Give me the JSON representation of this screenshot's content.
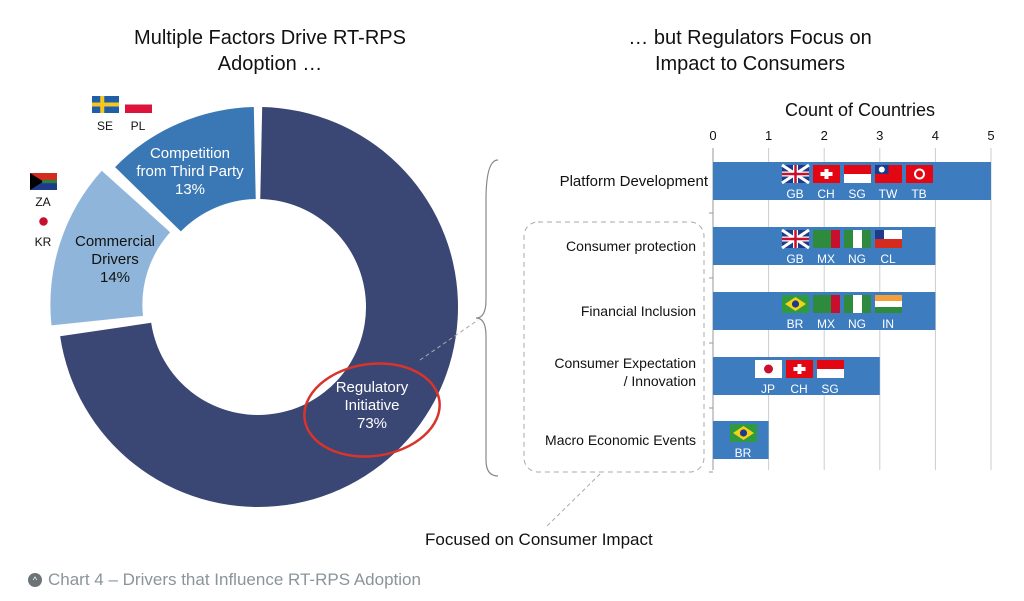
{
  "left_title": [
    "Multiple Factors Drive RT-RPS",
    "Adoption …"
  ],
  "right_title": [
    "… but Regulators Focus on",
    "Impact to Consumers"
  ],
  "focus_label": "Focused on Consumer Impact",
  "caption": "Chart 4 – Drivers that Influence RT-RPS Adoption",
  "caption_icon": "chevron-up-circle-icon",
  "chart_data": [
    {
      "type": "pie",
      "variant": "donut",
      "slices": [
        {
          "label": [
            "Regulatory",
            "Initiative"
          ],
          "value": 73,
          "value_label": "73%",
          "color": "#3a4673",
          "highlighted": true
        },
        {
          "label": [
            "Commercial",
            "Drivers"
          ],
          "value": 14,
          "value_label": "14%",
          "color": "#8fb6da",
          "countries": [
            "ZA",
            "KR"
          ]
        },
        {
          "label": [
            "Competition",
            "from Third Party"
          ],
          "value": 13,
          "value_label": "13%",
          "color": "#3a78b5",
          "countries": [
            "SE",
            "PL"
          ]
        }
      ]
    },
    {
      "type": "bar",
      "orientation": "horizontal",
      "title": "Count of Countries",
      "xlim": [
        0,
        5
      ],
      "ticks": [
        "0",
        "1",
        "2",
        "3",
        "4",
        "5"
      ],
      "grid": true,
      "bar_color": "#3c7cbf",
      "categories": [
        {
          "label": [
            "Platform Development"
          ],
          "value": 5,
          "countries": [
            "GB",
            "CH",
            "SG",
            "TW",
            "TB"
          ]
        },
        {
          "label": [
            "Consumer protection"
          ],
          "value": 4,
          "countries": [
            "GB",
            "MX",
            "NG",
            "CL"
          ]
        },
        {
          "label": [
            "Financial Inclusion"
          ],
          "value": 4,
          "countries": [
            "BR",
            "MX",
            "NG",
            "IN"
          ]
        },
        {
          "label": [
            "Consumer Expectation",
            "/ Innovation"
          ],
          "value": 3,
          "countries": [
            "JP",
            "CH",
            "SG"
          ]
        },
        {
          "label": [
            "Macro Economic Events"
          ],
          "value": 1,
          "countries": [
            "BR"
          ]
        }
      ]
    }
  ]
}
